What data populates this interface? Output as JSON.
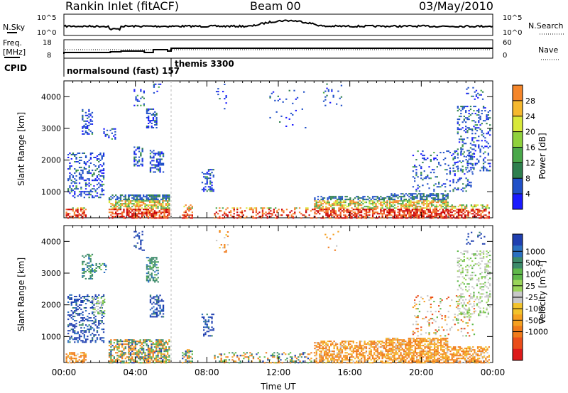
{
  "header": {
    "station": "Rankin Inlet (fitACF)",
    "beam": "Beam 00",
    "date": "03/May/2010"
  },
  "noise_panel": {
    "left_label": "N.Sky",
    "right_label": "N.Search",
    "ticks": [
      "10^5",
      "10^0"
    ]
  },
  "freq_panel": {
    "left_label_1": "Freq.",
    "left_label_2": "[MHz]",
    "right_label": "Nave",
    "left_ticks": [
      "18",
      "8"
    ],
    "right_ticks": [
      "60",
      "0"
    ]
  },
  "cpid_panel": {
    "label": "CPID",
    "programs": [
      {
        "name": "normalsound (fast) 157",
        "start_hour": 0
      },
      {
        "name": "themis 3300",
        "start_hour": 6
      }
    ]
  },
  "chart_data": [
    {
      "type": "heatmap",
      "name": "power",
      "ylabel": "Slant Range [km]",
      "xlabel": "",
      "x_range_hours": [
        0,
        24
      ],
      "ylim_km": [
        180,
        4500
      ],
      "y_ticks": [
        1000,
        2000,
        3000,
        4000
      ],
      "colorbar": {
        "label": "Power [dB]",
        "ticks": [
          "4",
          "8",
          "12",
          "16",
          "20",
          "24",
          "28"
        ],
        "colors": [
          "#1a1aff",
          "#2050c8",
          "#2e7f4e",
          "#4aa84a",
          "#8fd13c",
          "#d8e83a",
          "#f5b82e",
          "#f5862a",
          "#ee5a22",
          "#e22b1e",
          "#cc0000"
        ]
      }
    },
    {
      "type": "heatmap",
      "name": "velocity",
      "ylabel": "Slant Range [km]",
      "xlabel": "Time UT",
      "x_range_hours": [
        0,
        24
      ],
      "ylim_km": [
        180,
        4500
      ],
      "y_ticks": [
        1000,
        2000,
        3000,
        4000
      ],
      "x_ticks": [
        "00:00",
        "04:00",
        "08:00",
        "12:00",
        "16:00",
        "20:00",
        "00:00"
      ],
      "colorbar": {
        "label": "Velocity [m s^-1]",
        "ticks": [
          "1000",
          "500",
          "100",
          "25",
          "-25",
          "-100",
          "-500",
          "-1000"
        ],
        "colors": [
          "#1f3fb0",
          "#2a6fc0",
          "#3c8a6a",
          "#5fb84a",
          "#9ad45a",
          "#c8c8c8",
          "#f2c22a",
          "#f5a020",
          "#f07a1a",
          "#ea4d1a",
          "#dd1a1a"
        ]
      }
    }
  ]
}
